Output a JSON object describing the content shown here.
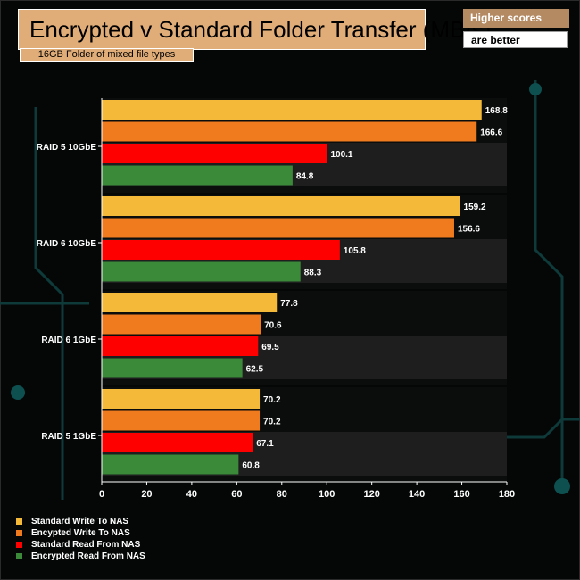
{
  "header": {
    "title": "Encrypted v Standard Folder Transfer (MB/s)",
    "subtitle": "16GB Folder of mixed file types",
    "badge_line1": "Higher scores",
    "badge_line2": "are better"
  },
  "chart_data": {
    "type": "bar",
    "orientation": "horizontal",
    "title": "Encrypted v Standard Folder Transfer (MB/s)",
    "subtitle": "16GB Folder of mixed file types",
    "categories": [
      "RAID 5 10GbE",
      "RAID 6 10GbE",
      "RAID 6 1GbE",
      "RAID 5 1GbE"
    ],
    "series": [
      {
        "name": "Standard Write To NAS",
        "color": "#f5b93a",
        "values": [
          168.8,
          159.2,
          77.8,
          70.2
        ]
      },
      {
        "name": "Encypted Write To NAS",
        "color": "#f07a1e",
        "values": [
          166.6,
          156.6,
          70.6,
          70.2
        ]
      },
      {
        "name": "Standard Read From NAS",
        "color": "#ff0000",
        "values": [
          100.1,
          105.8,
          69.5,
          67.1
        ]
      },
      {
        "name": "Encrypted Read From NAS",
        "color": "#3a8a3a",
        "values": [
          84.8,
          88.3,
          62.5,
          60.8
        ]
      }
    ],
    "value_labels": [
      [
        "168.8",
        "166.6",
        "100.1",
        "84.8"
      ],
      [
        "159.2",
        "156.6",
        "105.8",
        "88.3"
      ],
      [
        "77.8",
        "70.6",
        "69.5",
        "62.5"
      ],
      [
        "70.2",
        "70.2",
        "67.1",
        "60.8"
      ]
    ],
    "xlim": [
      0,
      180
    ],
    "xticks": [
      "0",
      "20",
      "40",
      "60",
      "80",
      "100",
      "120",
      "140",
      "160",
      "180"
    ],
    "grid": false,
    "legend_position": "bottom-left"
  }
}
